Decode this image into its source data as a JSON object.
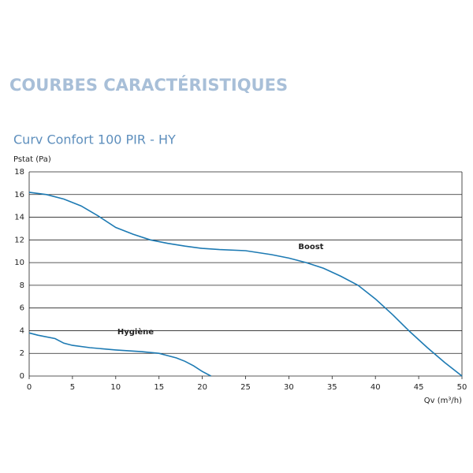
{
  "page_heading": "COURBES CARACTÉRISTIQUES",
  "chart_data": {
    "type": "line",
    "title": "Curv Confort 100 PIR - HY",
    "y_label": "Pstat (Pa)",
    "x_label": "Qv (m³/h)",
    "xlim": [
      0,
      50
    ],
    "xticks": [
      0,
      5,
      10,
      15,
      20,
      25,
      30,
      35,
      40,
      45,
      50
    ],
    "ylim": [
      0,
      18
    ],
    "yticks": [
      0,
      2,
      4,
      6,
      8,
      10,
      12,
      14,
      16,
      18
    ],
    "grid": true,
    "series": [
      {
        "name": "Boost",
        "color": "#1d7ab3",
        "x": [
          0,
          2,
          4,
          6,
          8,
          10,
          12,
          14,
          16,
          18,
          20,
          22,
          25,
          28,
          30,
          32,
          34,
          36,
          38,
          40,
          42,
          44,
          46,
          48,
          50
        ],
        "values": [
          16.2,
          16.0,
          15.6,
          15.0,
          14.1,
          13.1,
          12.5,
          12.0,
          11.7,
          11.45,
          11.25,
          11.15,
          11.05,
          10.7,
          10.4,
          10.0,
          9.5,
          8.8,
          8.0,
          6.8,
          5.4,
          3.9,
          2.5,
          1.2,
          0
        ]
      },
      {
        "name": "Hygiène",
        "color": "#1d7ab3",
        "x": [
          0,
          1,
          3,
          4,
          5,
          7,
          10,
          13,
          15,
          16,
          17,
          18,
          19,
          20,
          21
        ],
        "values": [
          3.8,
          3.6,
          3.3,
          2.9,
          2.7,
          2.5,
          2.3,
          2.15,
          2.0,
          1.8,
          1.6,
          1.3,
          0.9,
          0.4,
          0
        ]
      }
    ]
  }
}
